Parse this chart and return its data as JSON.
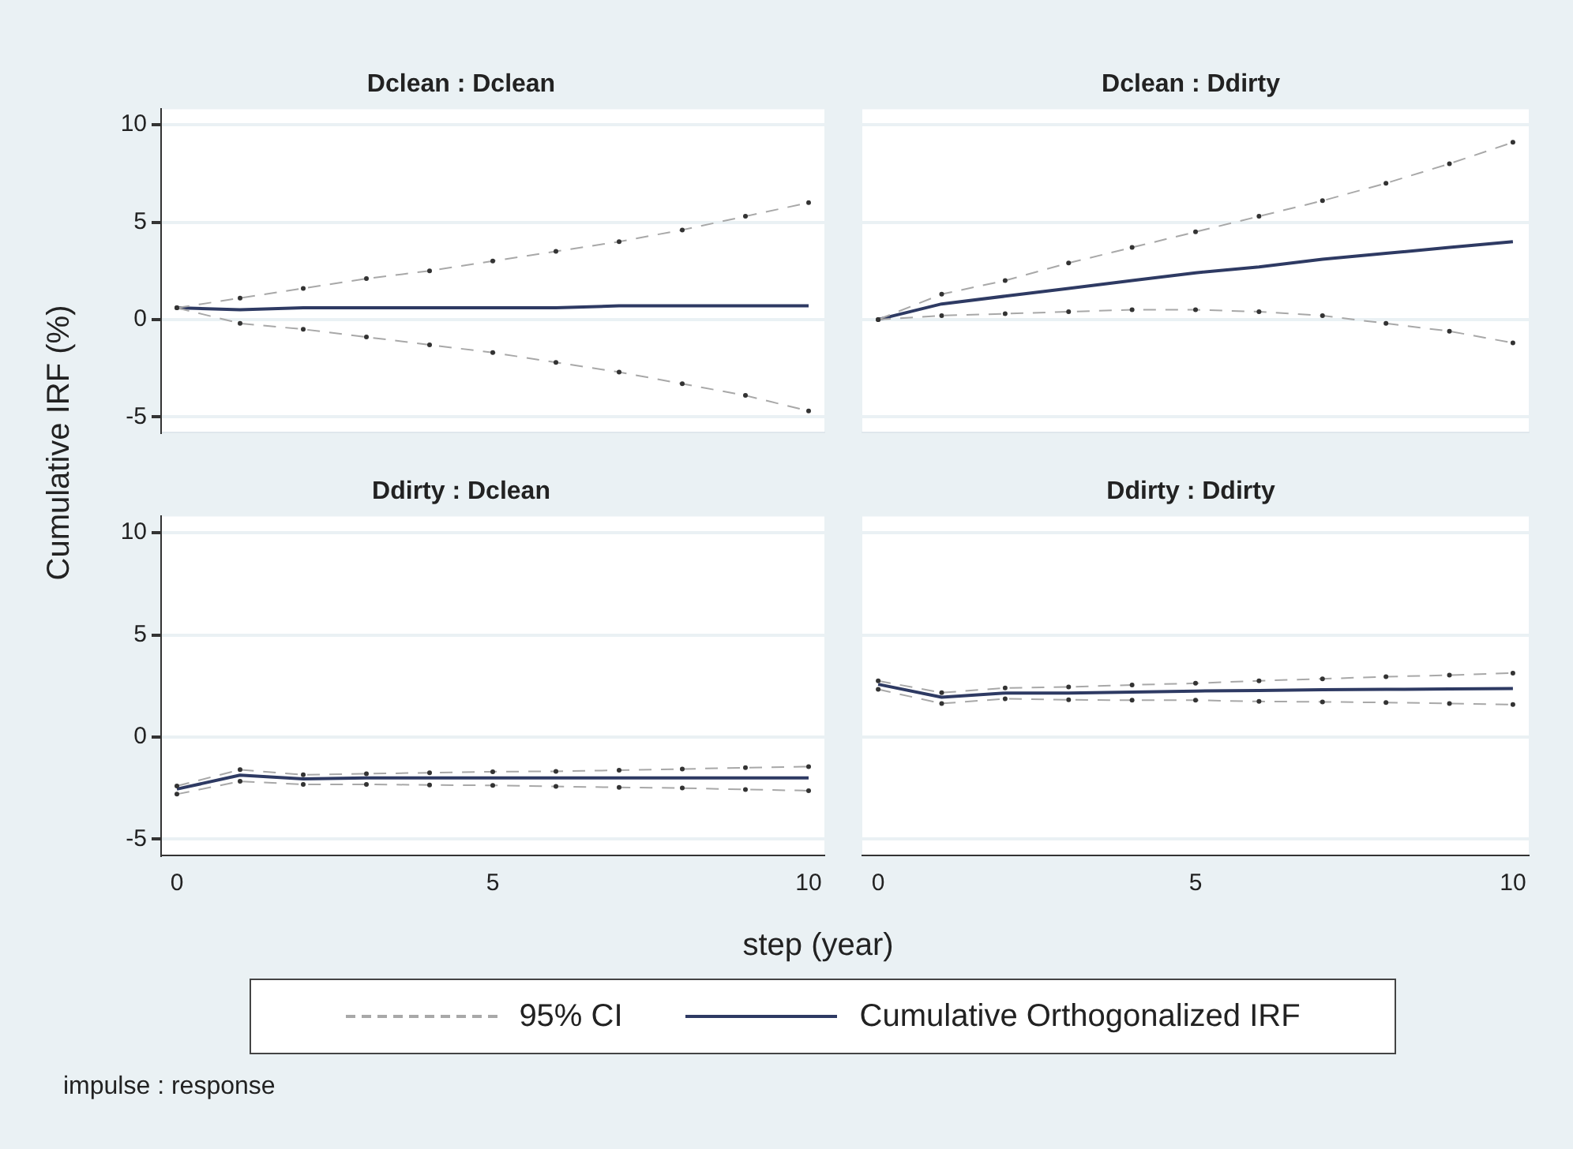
{
  "chart_data": [
    {
      "type": "line",
      "title": "Dclean : Dclean",
      "xlabel": "step (year)",
      "ylabel": "Cumulative IRF (%)",
      "annotations": [
        "impulse : response"
      ],
      "legend": "bottom",
      "grid": "y",
      "tick_labels": "y",
      "x": [
        0,
        1,
        2,
        3,
        4,
        5,
        6,
        7,
        8,
        9,
        10
      ],
      "xlim": [
        -0.25,
        10.25
      ],
      "xticks": [
        0,
        5,
        10
      ],
      "ylim": [
        -5.8,
        10.8
      ],
      "yticks": [
        -5,
        0,
        5,
        10
      ],
      "series": [
        {
          "name": "95% CI",
          "color": "#a8a8a8",
          "marker": "circle",
          "line_style": "dashed",
          "values": [
            0.6,
            1.1,
            1.6,
            2.1,
            2.5,
            3.0,
            3.5,
            4.0,
            4.6,
            5.3,
            6.0
          ]
        },
        {
          "color": "#a8a8a8",
          "marker": "circle",
          "line_style": "dashed",
          "values": [
            0.6,
            -0.2,
            -0.5,
            -0.9,
            -1.3,
            -1.7,
            -2.2,
            -2.7,
            -3.3,
            -3.9,
            -4.7
          ]
        },
        {
          "name": "Cumulative Orthogonalized IRF",
          "color": "#2e3a63",
          "marker": "none",
          "line_style": "solid",
          "values": [
            0.6,
            0.5,
            0.6,
            0.6,
            0.6,
            0.6,
            0.6,
            0.7,
            0.7,
            0.7,
            0.7
          ]
        }
      ]
    },
    {
      "type": "line",
      "title": "Dclean : Ddirty",
      "grid": "y",
      "tick_labels": false,
      "x": [
        0,
        1,
        2,
        3,
        4,
        5,
        6,
        7,
        8,
        9,
        10
      ],
      "xlim": [
        -0.25,
        10.25
      ],
      "xticks": [
        0,
        5,
        10
      ],
      "ylim": [
        -5.8,
        10.8
      ],
      "yticks": [
        -5,
        0,
        5,
        10
      ],
      "series": [
        {
          "color": "#a8a8a8",
          "marker": "circle",
          "line_style": "dashed",
          "values": [
            0,
            1.3,
            2.0,
            2.9,
            3.7,
            4.5,
            5.3,
            6.1,
            7.0,
            8.0,
            9.1
          ]
        },
        {
          "color": "#a8a8a8",
          "marker": "circle",
          "line_style": "dashed",
          "values": [
            0,
            0.2,
            0.3,
            0.4,
            0.5,
            0.5,
            0.4,
            0.2,
            -0.2,
            -0.6,
            -1.2
          ]
        },
        {
          "color": "#2e3a63",
          "marker": "none",
          "line_style": "solid",
          "values": [
            0,
            0.8,
            1.2,
            1.6,
            2.0,
            2.4,
            2.7,
            3.1,
            3.4,
            3.7,
            4.0
          ]
        }
      ]
    },
    {
      "type": "line",
      "title": "Ddirty : Dclean",
      "grid": "y",
      "x": [
        0,
        1,
        2,
        3,
        4,
        5,
        6,
        7,
        8,
        9,
        10
      ],
      "xlim": [
        -0.25,
        10.25
      ],
      "xticks": [
        0,
        5,
        10
      ],
      "ylim": [
        -5.8,
        10.8
      ],
      "yticks": [
        -5,
        0,
        5,
        10
      ],
      "series": [
        {
          "color": "#a8a8a8",
          "marker": "circle",
          "line_style": "dashed",
          "values": [
            -2.4,
            -1.6,
            -1.85,
            -1.8,
            -1.75,
            -1.7,
            -1.68,
            -1.63,
            -1.57,
            -1.5,
            -1.45
          ]
        },
        {
          "color": "#a8a8a8",
          "marker": "circle",
          "line_style": "dashed",
          "values": [
            -2.8,
            -2.17,
            -2.32,
            -2.32,
            -2.35,
            -2.37,
            -2.42,
            -2.47,
            -2.5,
            -2.57,
            -2.63
          ]
        },
        {
          "color": "#2e3a63",
          "marker": "none",
          "line_style": "solid",
          "values": [
            -2.55,
            -1.87,
            -2.05,
            -2.0,
            -2.0,
            -2.0,
            -2.0,
            -2.0,
            -2.0,
            -2.0,
            -2.0
          ]
        }
      ]
    },
    {
      "type": "line",
      "title": "Ddirty : Ddirty",
      "grid": "y",
      "tick_labels": "x",
      "x": [
        0,
        1,
        2,
        3,
        4,
        5,
        6,
        7,
        8,
        9,
        10
      ],
      "xlim": [
        -0.25,
        10.25
      ],
      "xticks": [
        0,
        5,
        10
      ],
      "ylim": [
        -5.8,
        10.8
      ],
      "yticks": [
        -5,
        0,
        5,
        10
      ],
      "series": [
        {
          "color": "#a8a8a8",
          "marker": "circle",
          "line_style": "dashed",
          "values": [
            2.75,
            2.17,
            2.4,
            2.45,
            2.55,
            2.63,
            2.75,
            2.85,
            2.95,
            3.03,
            3.13
          ]
        },
        {
          "color": "#a8a8a8",
          "marker": "circle",
          "line_style": "dashed",
          "values": [
            2.33,
            1.64,
            1.87,
            1.82,
            1.8,
            1.8,
            1.74,
            1.72,
            1.69,
            1.64,
            1.59
          ]
        },
        {
          "color": "#2e3a63",
          "marker": "none",
          "line_style": "solid",
          "values": [
            2.58,
            1.95,
            2.15,
            2.15,
            2.2,
            2.25,
            2.28,
            2.31,
            2.33,
            2.35,
            2.37
          ]
        }
      ]
    }
  ]
}
